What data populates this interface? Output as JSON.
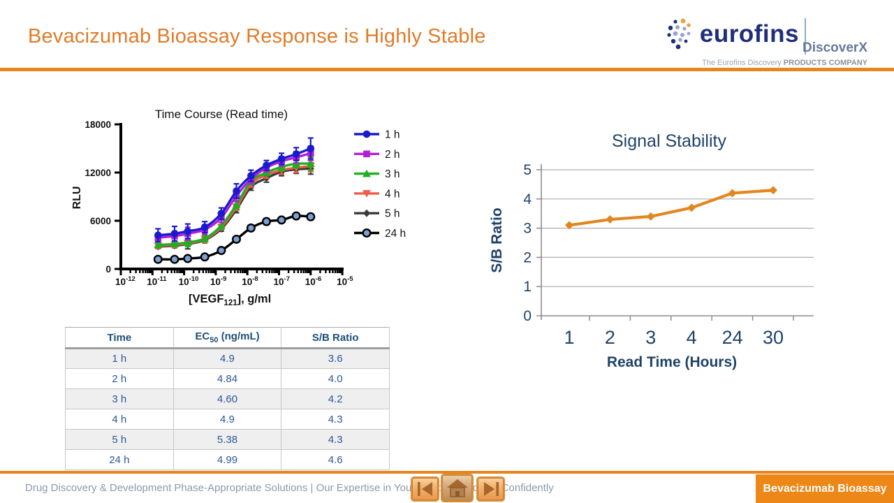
{
  "header": {
    "title": "Bevacizumab Bioassay Response is Highly Stable",
    "logo": {
      "brand": "eurofins",
      "sub_brand": "DiscoverX",
      "tagline_regular": "The Eurofins Discovery ",
      "tagline_bold": "PRODUCTS COMPANY"
    }
  },
  "colors": {
    "accent_orange": "#E6861C",
    "title_orange": "#E07B27",
    "navy_text": "#1F4368",
    "table_text": "#2B579A",
    "footer_text": "#8E98AB",
    "badge_orange": "#ED8718"
  },
  "chart_data": [
    {
      "id": "time-course",
      "type": "line",
      "title": "Time Course (Read time)",
      "xlabel_prefix": "[VEGF",
      "xlabel_sub": "121",
      "xlabel_suffix": "], g/ml",
      "ylabel": "RLU",
      "x_scale": "log",
      "x_exponents": [
        -12,
        -11,
        -10,
        -9,
        -8,
        -7,
        -6,
        -5
      ],
      "ylim": [
        0,
        18000
      ],
      "y_ticks": [
        0,
        6000,
        12000,
        18000
      ],
      "legend_position": "right",
      "x": [
        1.5e-11,
        5e-11,
        1.3e-10,
        4.5e-10,
        1.5e-09,
        4.5e-09,
        1.3e-08,
        4e-08,
        1.2e-07,
        3.5e-07,
        1e-06
      ],
      "series": [
        {
          "name": "1 h",
          "color": "#1A1ACD",
          "marker": "circle",
          "values": [
            4200,
            4400,
            4700,
            5200,
            6900,
            9700,
            11600,
            12900,
            13700,
            14300,
            15000
          ],
          "err": [
            800,
            900,
            900,
            700,
            700,
            900,
            700,
            600,
            700,
            800,
            1300
          ]
        },
        {
          "name": "2 h",
          "color": "#B21FD6",
          "marker": "square",
          "values": [
            3900,
            4100,
            4400,
            4900,
            6400,
            9100,
            11200,
            12600,
            13400,
            13900,
            14400
          ],
          "err": [
            500,
            600,
            800,
            600,
            600,
            700,
            600,
            500,
            600,
            700,
            900
          ]
        },
        {
          "name": "3 h",
          "color": "#1FAF1F",
          "marker": "triangle-up",
          "values": [
            3000,
            3100,
            3300,
            3800,
            5400,
            8000,
            10900,
            12000,
            12700,
            13100,
            13100
          ],
          "err": [
            300,
            300,
            500,
            400,
            400,
            500,
            400,
            400,
            500,
            500,
            800
          ]
        },
        {
          "name": "4 h",
          "color": "#F15A4A",
          "marker": "triangle-down",
          "values": [
            2900,
            3000,
            3200,
            3700,
            5200,
            7700,
            10600,
            11700,
            12300,
            12600,
            12800
          ],
          "err": [
            300,
            300,
            400,
            400,
            300,
            400,
            400,
            400,
            500,
            600,
            700
          ]
        },
        {
          "name": "5 h",
          "color": "#3A3A3A",
          "marker": "diamond",
          "values": [
            2800,
            2900,
            3100,
            3600,
            5000,
            7400,
            10200,
            11300,
            12100,
            12400,
            12500
          ],
          "err": [
            250,
            250,
            600,
            350,
            300,
            400,
            400,
            500,
            500,
            500,
            700
          ]
        },
        {
          "name": "24 h",
          "color": "#000000",
          "marker": "circle-open",
          "marker_fill": "#7C9FD4",
          "values": [
            1200,
            1200,
            1300,
            1500,
            2300,
            3700,
            5100,
            5900,
            6100,
            6600,
            6500
          ],
          "err": [
            100,
            100,
            100,
            100,
            150,
            200,
            200,
            400,
            300,
            200,
            200
          ]
        }
      ]
    },
    {
      "id": "signal-stability",
      "type": "line",
      "title": "Signal Stability",
      "xlabel": "Read Time (Hours)",
      "ylabel": "S/B Ratio",
      "categories": [
        "1",
        "2",
        "3",
        "4",
        "24",
        "30"
      ],
      "values": [
        3.1,
        3.3,
        3.4,
        3.7,
        4.2,
        4.3
      ],
      "ylim": [
        0,
        5
      ],
      "y_ticks": [
        0,
        1,
        2,
        3,
        4,
        5
      ],
      "grid": true,
      "line_color": "#E2861F",
      "text_color": "#1F4368",
      "axis_color": "#8C8C8C"
    }
  ],
  "table": {
    "headers": [
      {
        "parts": [
          {
            "t": "Time"
          }
        ]
      },
      {
        "parts": [
          {
            "t": "EC"
          },
          {
            "t": "50",
            "sub": true
          },
          {
            "t": " (ng/mL)"
          }
        ]
      },
      {
        "parts": [
          {
            "t": "S/B Ratio"
          }
        ]
      }
    ],
    "rows": [
      [
        "1 h",
        "4.9",
        "3.6"
      ],
      [
        "2 h",
        "4.84",
        "4.0"
      ],
      [
        "3 h",
        "4.60",
        "4.2"
      ],
      [
        "4 h",
        "4.9",
        "4.3"
      ],
      [
        "5 h",
        "5.38",
        "4.3"
      ],
      [
        "24 h",
        "4.99",
        "4.6"
      ]
    ]
  },
  "footer": {
    "text": "Drug Discovery & Development Phase-Appropriate Solutions | Our Expertise in Your Hands - Discover Confidently"
  },
  "badge": {
    "label": "Bevacizumab Bioassay"
  }
}
